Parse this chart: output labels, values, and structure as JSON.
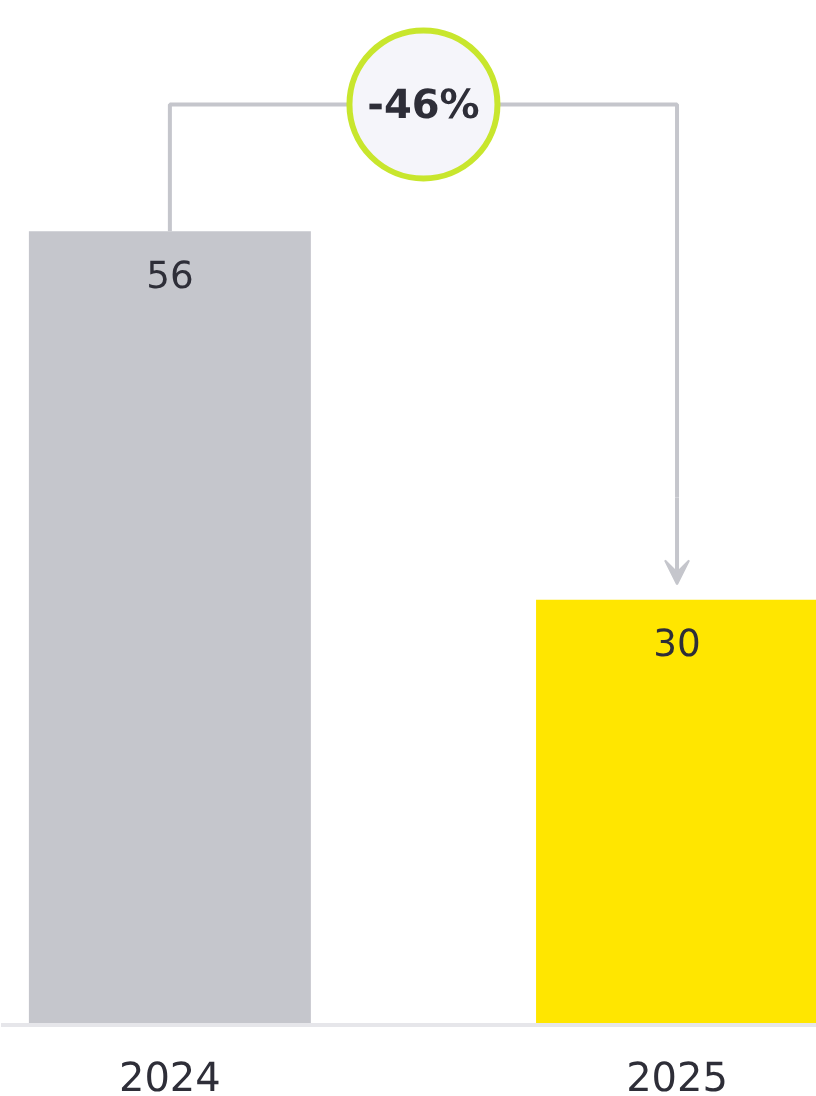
{
  "chart_data": {
    "type": "bar",
    "categories": [
      "2024",
      "2025"
    ],
    "values": [
      56,
      30
    ],
    "colors": [
      "#c5c6cc",
      "#ffe600"
    ],
    "data_labels": true,
    "annotations": [
      "-46%"
    ]
  }
}
